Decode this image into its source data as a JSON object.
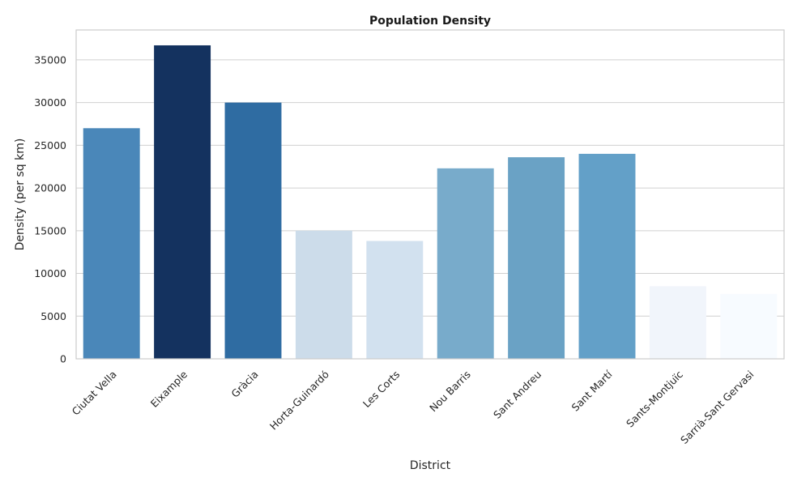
{
  "chart_data": {
    "type": "bar",
    "title": "Population Density",
    "xlabel": "District",
    "ylabel": "Density (per sq km)",
    "categories": [
      "Ciutat Vella",
      "Eixample",
      "Gràcia",
      "Horta-Guinardó",
      "Les Corts",
      "Nou Barris",
      "Sant Andreu",
      "Sant Martí",
      "Sants-Montjuïc",
      "Sarrià-Sant Gervasi"
    ],
    "values": [
      27000,
      36700,
      30000,
      15000,
      13800,
      22300,
      23600,
      24000,
      8500,
      7600
    ],
    "colors": [
      "#4a87b9",
      "#14325f",
      "#2f6ca2",
      "#ccdcea",
      "#d2e1ef",
      "#78abcb",
      "#6aa2c5",
      "#63a0c8",
      "#f1f5fb",
      "#f7fbff"
    ],
    "yticks": [
      0,
      5000,
      10000,
      15000,
      20000,
      25000,
      30000,
      35000
    ],
    "ylim": [
      0,
      38500
    ],
    "grid": "y"
  }
}
